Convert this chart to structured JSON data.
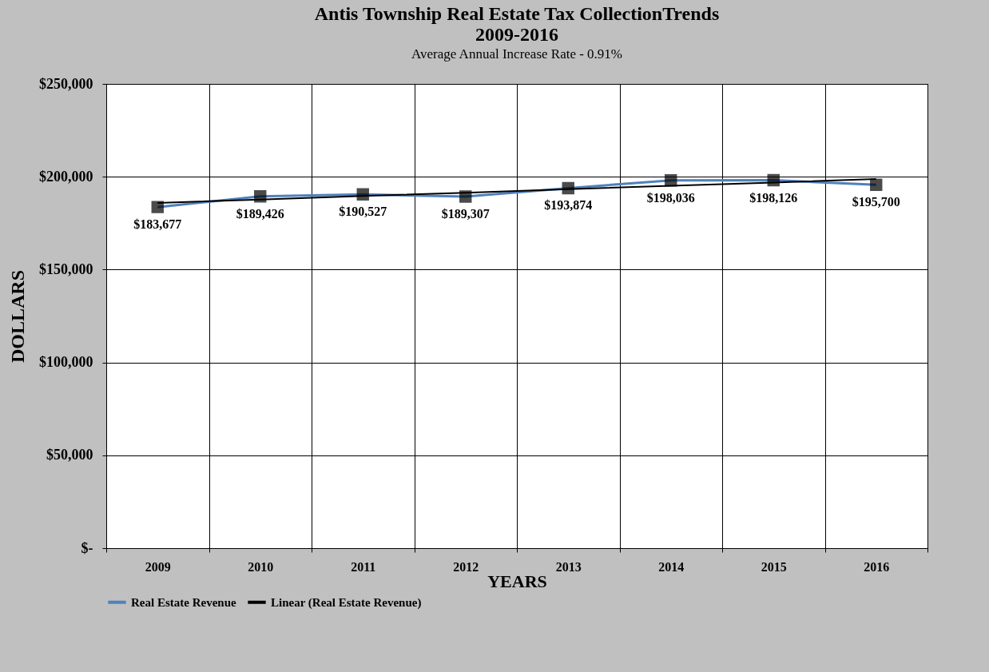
{
  "chart_data": {
    "type": "line",
    "title": "Antis Township Real Estate Tax CollectionTrends\n2009-2016",
    "subtitle": "Average Annual Increase Rate - 0.91%",
    "xlabel": "YEARS",
    "ylabel": "DOLLARS",
    "categories": [
      "2009",
      "2010",
      "2011",
      "2012",
      "2013",
      "2014",
      "2015",
      "2016"
    ],
    "series": [
      {
        "name": "Real Estate Revenue",
        "color": "#4f81bd",
        "marker": "square",
        "values": [
          183677,
          189426,
          190527,
          189307,
          193874,
          198036,
          198126,
          195700
        ],
        "value_labels": [
          "$183,677",
          "$189,426",
          "$190,527",
          "$189,307",
          "$193,874",
          "$198,036",
          "$198,126",
          "$195,700"
        ]
      },
      {
        "name": "Linear (Real Estate Revenue)",
        "color": "#000000",
        "type": "line",
        "marker": "none",
        "values": [
          185900,
          187700,
          189600,
          191400,
          193300,
          195100,
          196900,
          198800
        ]
      }
    ],
    "ylim": [
      0,
      250000
    ],
    "yticks": [
      {
        "value": 0,
        "label": "$-"
      },
      {
        "value": 50000,
        "label": "$50,000"
      },
      {
        "value": 100000,
        "label": "$100,000"
      },
      {
        "value": 150000,
        "label": "$150,000"
      },
      {
        "value": 200000,
        "label": "$200,000"
      },
      {
        "value": 250000,
        "label": "$250,000"
      }
    ],
    "grid": true,
    "legend": "bottom"
  }
}
